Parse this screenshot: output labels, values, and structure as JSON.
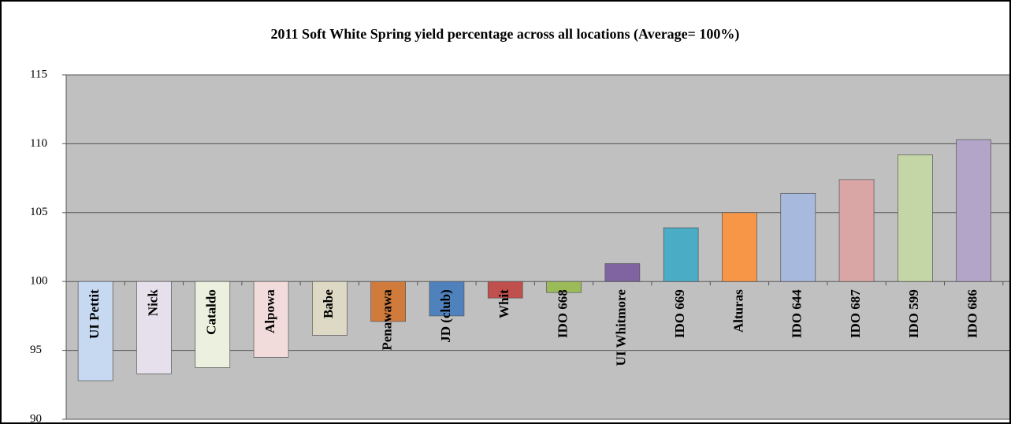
{
  "chart_data": {
    "type": "bar",
    "title": "2011 Soft White Spring yield percentage across all locations (Average= 100%)",
    "categories": [
      "UI Pettit",
      "Nick",
      "Cataldo",
      "Alpowa",
      "Babe",
      "Penawawa",
      "JD (club)",
      "Whit",
      "IDO 668",
      "UI Whitmore",
      "IDO 669",
      "Alturas",
      "IDO 644",
      "IDO 687",
      "IDO 599",
      "IDO 686"
    ],
    "values": [
      92.8,
      93.3,
      93.75,
      94.5,
      96.1,
      97.1,
      97.5,
      98.8,
      99.2,
      101.3,
      103.9,
      105.0,
      106.4,
      107.4,
      109.2,
      110.3
    ],
    "colors": [
      "#c6d9f1",
      "#e6e0ec",
      "#ebf1de",
      "#f2dcdb",
      "#ddd9c4",
      "#d07b3c",
      "#4f81bd",
      "#c0504d",
      "#9bbb59",
      "#8064a2",
      "#4bacc6",
      "#f79646",
      "#a7b9dc",
      "#d9a6a5",
      "#c4d5a6",
      "#b3a5c8"
    ],
    "baseline": 100,
    "ylim": [
      90,
      115
    ],
    "yticks": [
      90,
      95,
      100,
      105,
      110,
      115
    ],
    "grid": true
  }
}
